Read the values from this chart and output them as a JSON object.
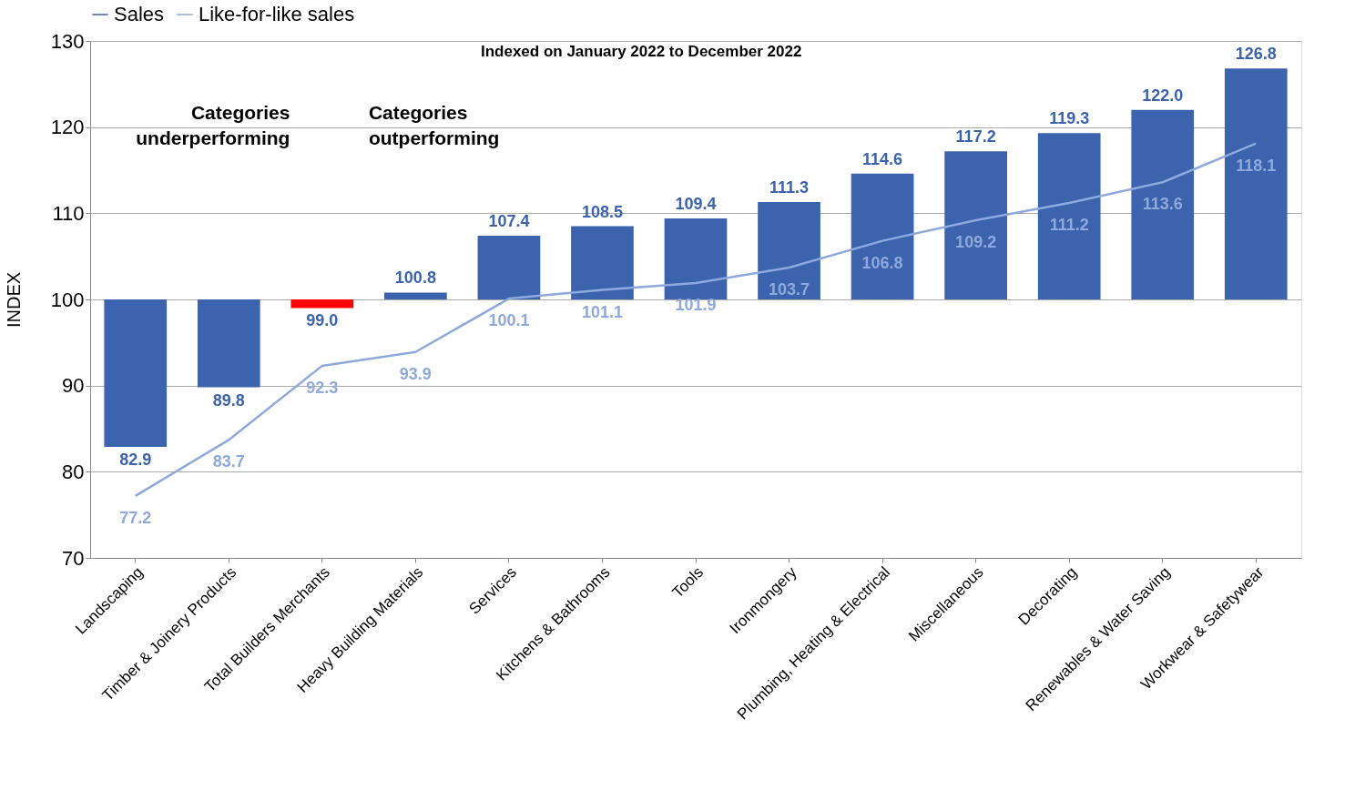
{
  "chart_data": {
    "type": "bar",
    "ylabel": "INDEX",
    "categories": [
      "Landscaping",
      "Timber & Joinery Products",
      "Total Builders Merchants",
      "Heavy Building Materials",
      "Services",
      "Kitchens & Bathrooms",
      "Tools",
      "Ironmongery",
      "Plumbing, Heating & Electrical",
      "Miscellaneous",
      "Decorating",
      "Renewables & Water Saving",
      "Workwear & Safetywear"
    ],
    "series": [
      {
        "name": "Sales",
        "color": "#3c63ae",
        "colors": [
          "#3c63ae",
          "#3c63ae",
          "#ff0000",
          "#3c63ae",
          "#3c63ae",
          "#3c63ae",
          "#3c63ae",
          "#3c63ae",
          "#3c63ae",
          "#3c63ae",
          "#3c63ae",
          "#3c63ae",
          "#3c63ae"
        ],
        "base": [
          100,
          100,
          100,
          100,
          100,
          100,
          100,
          100,
          100,
          100,
          100,
          100,
          100
        ],
        "values": [
          -17.1,
          -10.2,
          -1.0,
          0.8,
          7.4,
          8.5,
          9.4,
          11.3,
          14.6,
          17.2,
          19.3,
          22.0,
          26.8
        ],
        "value_labels": [
          "82.9",
          "89.8",
          "99.0",
          "100.8",
          "107.4",
          "108.5",
          "109.4",
          "111.3",
          "114.6",
          "117.2",
          "119.3",
          "122.0",
          "126.8"
        ]
      },
      {
        "name": "Like-for-like sales",
        "type": "line",
        "color": "#8ea9db",
        "values": [
          77.2,
          83.7,
          92.3,
          93.9,
          100.1,
          101.1,
          101.9,
          103.7,
          106.8,
          109.2,
          111.2,
          113.6,
          118.1
        ],
        "data_labels": true
      }
    ],
    "ylim": [
      70,
      130
    ],
    "yticks": [
      70,
      80,
      90,
      100,
      110,
      120,
      130
    ],
    "grid": "y",
    "legend": "top",
    "marker": "none",
    "annotations": [
      "Indexed on January 2022 to December 2022",
      "Categories underperforming",
      "Categories outperforming"
    ]
  }
}
